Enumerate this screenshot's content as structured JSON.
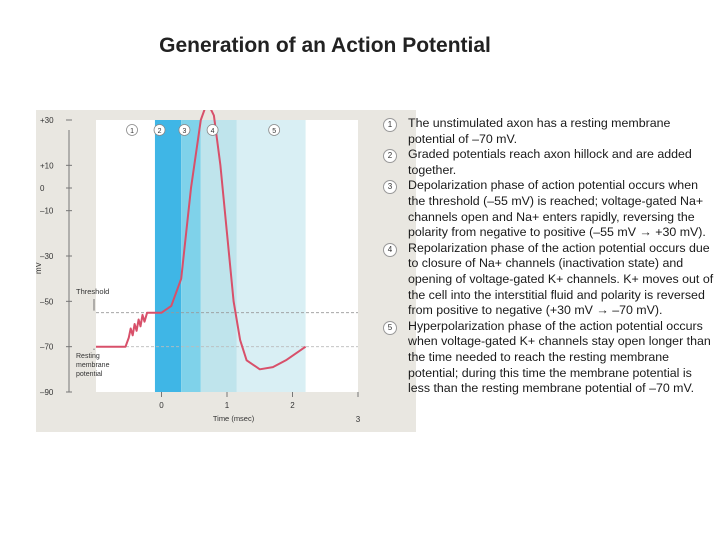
{
  "title": "Generation of an Action Potential",
  "figure": {
    "y_unit": "mV",
    "y_ticks": [
      "+30",
      "+10",
      "0",
      "–10",
      "–30",
      "–50",
      "–70",
      "–90"
    ],
    "x_ticks": [
      "0",
      "1",
      "2",
      "3"
    ],
    "x_label": "Time (msec)",
    "threshold_label": "Threshold",
    "resting_label_lines": [
      "Resting",
      "membrane",
      "potential"
    ],
    "phase_numbers": [
      "1",
      "2",
      "3",
      "4",
      "5"
    ]
  },
  "chart_data": {
    "type": "line",
    "xlabel": "Time (msec)",
    "ylabel": "mV",
    "xlim": [
      -1,
      3
    ],
    "ylim": [
      -90,
      30
    ],
    "series": [
      {
        "points": [
          [
            -1.0,
            -70
          ],
          [
            -0.55,
            -70
          ],
          [
            -0.5,
            -66
          ],
          [
            -0.47,
            -62
          ],
          [
            -0.44,
            -65
          ],
          [
            -0.41,
            -60
          ],
          [
            -0.38,
            -63
          ],
          [
            -0.35,
            -58
          ],
          [
            -0.32,
            -61
          ],
          [
            -0.29,
            -56
          ],
          [
            -0.26,
            -59
          ],
          [
            -0.22,
            -55
          ],
          [
            0.0,
            -55
          ],
          [
            0.15,
            -52
          ],
          [
            0.3,
            -40
          ],
          [
            0.45,
            0
          ],
          [
            0.6,
            30
          ],
          [
            0.7,
            38
          ],
          [
            0.8,
            32
          ],
          [
            0.9,
            10
          ],
          [
            1.0,
            -20
          ],
          [
            1.1,
            -50
          ],
          [
            1.2,
            -67
          ],
          [
            1.3,
            -76
          ],
          [
            1.5,
            -80
          ],
          [
            1.7,
            -79
          ],
          [
            1.9,
            -76
          ],
          [
            2.1,
            -72
          ],
          [
            2.2,
            -70
          ]
        ]
      }
    ],
    "threshold_value": -55,
    "resting_value": -70,
    "phase_boundaries": [
      -0.1,
      0.3,
      0.6,
      1.15,
      2.2
    ]
  },
  "steps": [
    {
      "num": "1",
      "text": "The unstimulated axon has a resting membrane potential of –70 mV."
    },
    {
      "num": "2",
      "text": "Graded potentials reach axon hillock and are added together."
    },
    {
      "num": "3",
      "text": "Depolarization phase of action potential occurs when the threshold (–55 mV) is reached; voltage-gated Na+ channels open and Na+ enters rapidly, reversing the polarity from negative to positive (–55 mV → +30 mV)."
    },
    {
      "num": "4",
      "text": "Repolarization phase of the action potential occurs due to closure of Na+ channels (inactivation state) and opening of voltage-gated K+ channels. K+ moves out of the cell into the interstitial fluid and polarity is reversed from positive to negative (+30 mV → –70 mV)."
    },
    {
      "num": "5",
      "text": "Hyperpolarization phase of the action potential occurs when voltage-gated K+ channels stay open longer than the time needed to reach the resting membrane potential; during this time the membrane potential is less than the resting membrane potential of –70 mV."
    }
  ],
  "colors": {
    "trace": "#d8506a",
    "phase2": "#3fb6e6",
    "phase3": "#7fd2ea",
    "phase4": "#bfe4ec",
    "phase5": "#d9eff4",
    "panel": "#e9e7e1"
  }
}
